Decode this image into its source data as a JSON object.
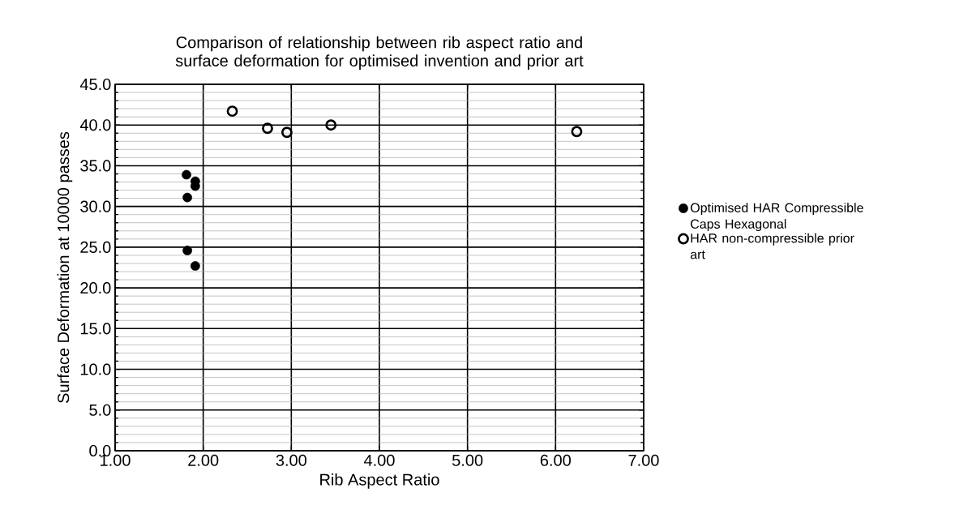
{
  "chart_data": {
    "type": "scatter",
    "title": "Comparison of relationship between rib aspect ratio and surface deformation for optimised invention and prior art",
    "xlabel": "Rib Aspect Ratio",
    "ylabel": "Surface Deformation at 10000 passes",
    "series": [
      {
        "name": "Optimised HAR Compressible Caps Hexagonal",
        "color": "#000000",
        "marker": "circle",
        "x": [
          1.81,
          1.91,
          1.91,
          1.82,
          1.82,
          1.91
        ],
        "values": [
          33.9,
          33.1,
          32.5,
          31.1,
          24.6,
          22.7
        ]
      },
      {
        "name": "HAR non-compressible prior art",
        "color": "#000000",
        "marker": "open circle",
        "x": [
          2.33,
          2.73,
          2.95,
          3.45,
          6.24
        ],
        "values": [
          41.7,
          39.6,
          39.1,
          40.0,
          39.2
        ]
      }
    ],
    "xlim": [
      1,
      7
    ],
    "ylim": [
      0,
      45
    ],
    "xticks": [
      {
        "value": 1,
        "label": "1.00"
      },
      {
        "value": 2,
        "label": "2.00"
      },
      {
        "value": 3,
        "label": "3.00"
      },
      {
        "value": 4,
        "label": "4.00"
      },
      {
        "value": 5,
        "label": "5.00"
      },
      {
        "value": 6,
        "label": "6.00"
      },
      {
        "value": 7,
        "label": "7.00"
      }
    ],
    "yticks": [
      {
        "value": 0,
        "label": "0.0"
      },
      {
        "value": 5,
        "label": "5.0"
      },
      {
        "value": 10,
        "label": "10.0"
      },
      {
        "value": 15,
        "label": "15.0"
      },
      {
        "value": 20,
        "label": "20.0"
      },
      {
        "value": 25,
        "label": "25.0"
      },
      {
        "value": 30,
        "label": "30.0"
      },
      {
        "value": 35,
        "label": "35.0"
      },
      {
        "value": 40,
        "label": "40.0"
      },
      {
        "value": 45,
        "label": "45.0"
      }
    ],
    "grid": true,
    "legend": "right"
  }
}
